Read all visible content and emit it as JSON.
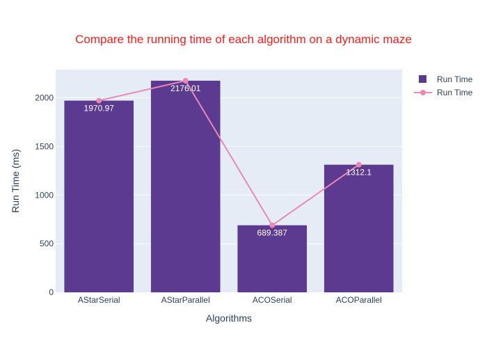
{
  "chart_data": {
    "type": "bar",
    "title": "Compare the running time of each algorithm on a dynamic maze",
    "xlabel": "Algorithms",
    "ylabel": "Run Time (ms)",
    "categories": [
      "AStarSerial",
      "AStarParallel",
      "ACOSerial",
      "ACOParallel"
    ],
    "series": [
      {
        "name": "Run Time",
        "kind": "bar",
        "values": [
          1970.97,
          2176.01,
          689.387,
          1312.1
        ],
        "labels": [
          "1970.97",
          "2176.01",
          "689.387",
          "1312.1"
        ]
      },
      {
        "name": "Run Time",
        "kind": "line",
        "values": [
          1970.97,
          2176.01,
          689.387,
          1312.1
        ]
      }
    ],
    "ylim": [
      0,
      2290
    ],
    "yticks": [
      0,
      500,
      1000,
      1500,
      2000
    ],
    "grid": true,
    "legend_position": "top-right"
  },
  "colors": {
    "title": "#ff1a1a",
    "plot_bg": "#e5ecf6",
    "bar": "#5b3a8f",
    "line": "#e889b5",
    "grid": "#ffffff",
    "text": "#2a3f5f"
  }
}
